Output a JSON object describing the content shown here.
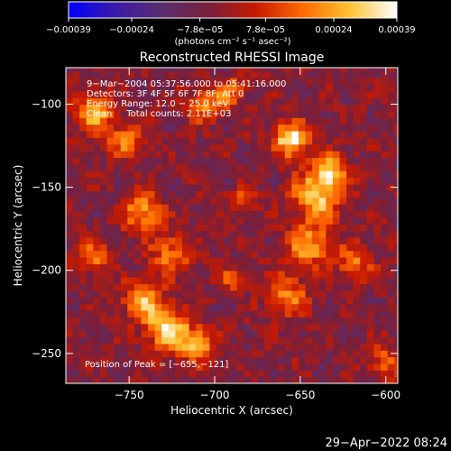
{
  "chart_data": {
    "type": "heatmap",
    "title": "Reconstructed RHESSI Image",
    "xlabel": "Heliocentric X (arcsec)",
    "ylabel": "Heliocentric Y (arcsec)",
    "xlim": [
      -787,
      -593
    ],
    "ylim": [
      -268,
      -78
    ],
    "x_ticks": [
      -750,
      -700,
      -650,
      -600
    ],
    "y_ticks": [
      -100,
      -150,
      -200,
      -250
    ],
    "x_tick_labels": [
      "−750",
      "−700",
      "−650",
      "−600"
    ],
    "y_tick_labels": [
      "−100",
      "−150",
      "−200",
      "−250"
    ],
    "colorbar": {
      "range": [
        -0.00039,
        0.00039
      ],
      "ticks": [
        -0.00039,
        -0.00024,
        -7.8e-05,
        7.8e-05,
        0.00024,
        0.00039
      ],
      "tick_labels": [
        "−0.00039",
        "−0.00024",
        "−7.8e−05",
        "7.8e−05",
        "0.00024",
        "0.00039"
      ],
      "unit_label": "(photons cm⁻² s⁻¹ asec⁻²)",
      "colors": [
        "#0000ff",
        "#3b1aa8",
        "#5a2e6e",
        "#7a1f3a",
        "#c81a00",
        "#ff6a00",
        "#ffc233",
        "#ffffff"
      ]
    },
    "annotations": [
      "9−Mar−2004 05:37:56.000 to 05:41:16.000",
      "Detectors: 3F 4F 5F 6F 7F 8F, Att 0",
      "Energy Range: 12.0 − 25.0 keV",
      "Clean     Total counts: 2.11E+03",
      "Position of Peak = [−655,−121]"
    ],
    "peak_position": [
      -655,
      -121
    ],
    "hot_spots": [
      {
        "x": -655,
        "y": -121,
        "value": 0.00039,
        "sigma": 7
      },
      {
        "x": -640,
        "y": -155,
        "value": 0.0003,
        "sigma": 10
      },
      {
        "x": -632,
        "y": -140,
        "value": 0.00025,
        "sigma": 7
      },
      {
        "x": -645,
        "y": -185,
        "value": 0.00024,
        "sigma": 9
      },
      {
        "x": -658,
        "y": -215,
        "value": 0.0002,
        "sigma": 8
      },
      {
        "x": -618,
        "y": -195,
        "value": 0.00018,
        "sigma": 7
      },
      {
        "x": -727,
        "y": -235,
        "value": 0.00033,
        "sigma": 9
      },
      {
        "x": -742,
        "y": -218,
        "value": 0.00026,
        "sigma": 8
      },
      {
        "x": -710,
        "y": -245,
        "value": 0.00024,
        "sigma": 7
      },
      {
        "x": -742,
        "y": -165,
        "value": 0.00024,
        "sigma": 8
      },
      {
        "x": -725,
        "y": -190,
        "value": 0.0002,
        "sigma": 8
      },
      {
        "x": -770,
        "y": -105,
        "value": 0.00026,
        "sigma": 8
      },
      {
        "x": -752,
        "y": -122,
        "value": 0.00018,
        "sigma": 7
      },
      {
        "x": -705,
        "y": -100,
        "value": 0.0002,
        "sigma": 7
      },
      {
        "x": -690,
        "y": -92,
        "value": 0.00016,
        "sigma": 6
      },
      {
        "x": -772,
        "y": -192,
        "value": 0.00018,
        "sigma": 7
      },
      {
        "x": -683,
        "y": -158,
        "value": 0.00012,
        "sigma": 6
      },
      {
        "x": -600,
        "y": -255,
        "value": 0.00014,
        "sigma": 7
      },
      {
        "x": -690,
        "y": -205,
        "value": 0.0001,
        "sigma": 6
      }
    ]
  },
  "footer": {
    "timestamp": "29−Apr−2022 08:24"
  }
}
